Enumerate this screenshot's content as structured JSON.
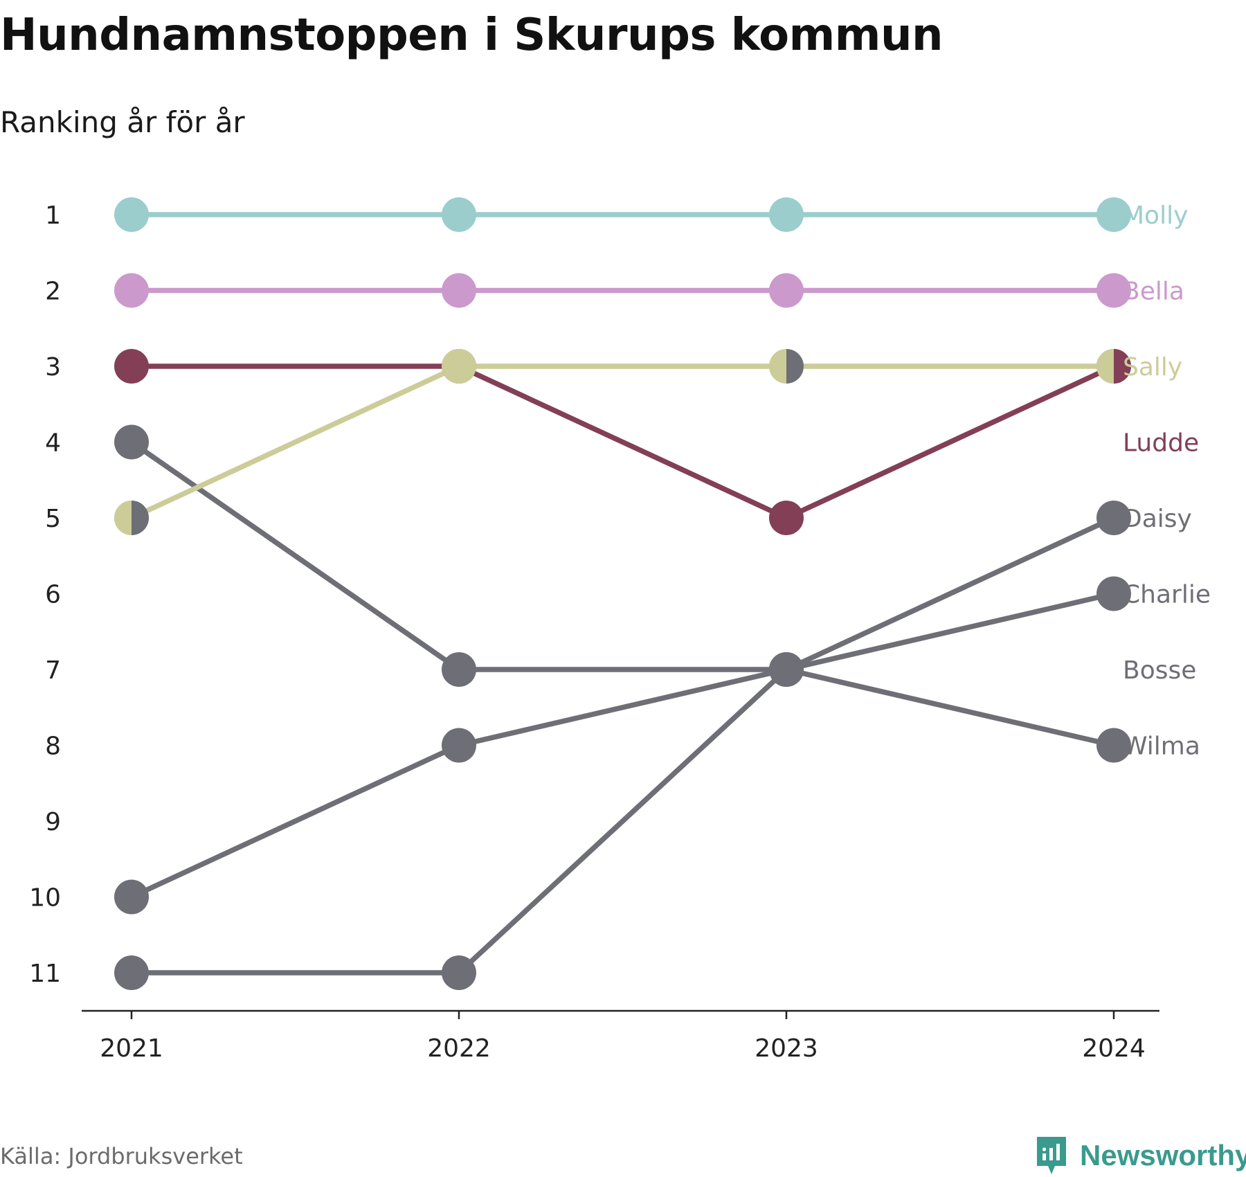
{
  "title": "Hundnamnstoppen i Skurups kommun",
  "subtitle": "Ranking år för år",
  "source": "Källa: Jordbruksverket",
  "brand": {
    "name": "Newsworthy",
    "icon": "newsworthy-logo-icon",
    "color": "#3a9a8e"
  },
  "chart_data": {
    "type": "line",
    "x": [
      "2021",
      "2022",
      "2023",
      "2024"
    ],
    "y_ticks": [
      "1",
      "2",
      "3",
      "4",
      "5",
      "6",
      "7",
      "8",
      "9",
      "10",
      "11"
    ],
    "ylim": [
      1,
      11
    ],
    "y_reversed": true,
    "grid": false,
    "series": [
      {
        "name": "Molly",
        "color": "#9bcdcd",
        "values": [
          1,
          1,
          1,
          1
        ]
      },
      {
        "name": "Bella",
        "color": "#cc99cc",
        "values": [
          2,
          2,
          2,
          2
        ]
      },
      {
        "name": "Bosse",
        "color": "#6e6e76",
        "values": [
          11,
          11,
          7,
          null
        ]
      },
      {
        "name": "Wilma",
        "color": "#6e6e76",
        "values": [
          10,
          8,
          7,
          8
        ]
      },
      {
        "name": "Daisy",
        "color": "#6e6e76",
        "values": [
          null,
          null,
          7,
          5
        ]
      },
      {
        "name": "Charlie",
        "color": "#6e6e76",
        "values": [
          4,
          7,
          7,
          6
        ]
      },
      {
        "name": "Ludde",
        "color": "#823f56",
        "values": [
          3,
          3,
          5,
          3
        ]
      },
      {
        "name": "Sally",
        "color": "#cccc99",
        "values": [
          5,
          3,
          3,
          3
        ]
      }
    ],
    "shared_markers": [
      {
        "x": "2021",
        "y": 5,
        "colors": [
          "#cccc99",
          "#6e6e76"
        ]
      },
      {
        "x": "2023",
        "y": 3,
        "colors": [
          "#cccc99",
          "#6e6e76"
        ]
      },
      {
        "x": "2024",
        "y": 3,
        "colors": [
          "#cccc99",
          "#823f56"
        ]
      }
    ],
    "end_labels": [
      {
        "name": "Molly",
        "rank": 1,
        "color": "#9bcdcd"
      },
      {
        "name": "Bella",
        "rank": 2,
        "color": "#cc99cc"
      },
      {
        "name": "Sally",
        "rank": 3,
        "color": "#cccc99"
      },
      {
        "name": "Ludde",
        "rank": 4,
        "color": "#823f56"
      },
      {
        "name": "Daisy",
        "rank": 5,
        "color": "#6e6e76"
      },
      {
        "name": "Charlie",
        "rank": 6,
        "color": "#6e6e76"
      },
      {
        "name": "Bosse",
        "rank": 7,
        "color": "#6e6e76"
      },
      {
        "name": "Wilma",
        "rank": 8,
        "color": "#6e6e76"
      }
    ]
  }
}
